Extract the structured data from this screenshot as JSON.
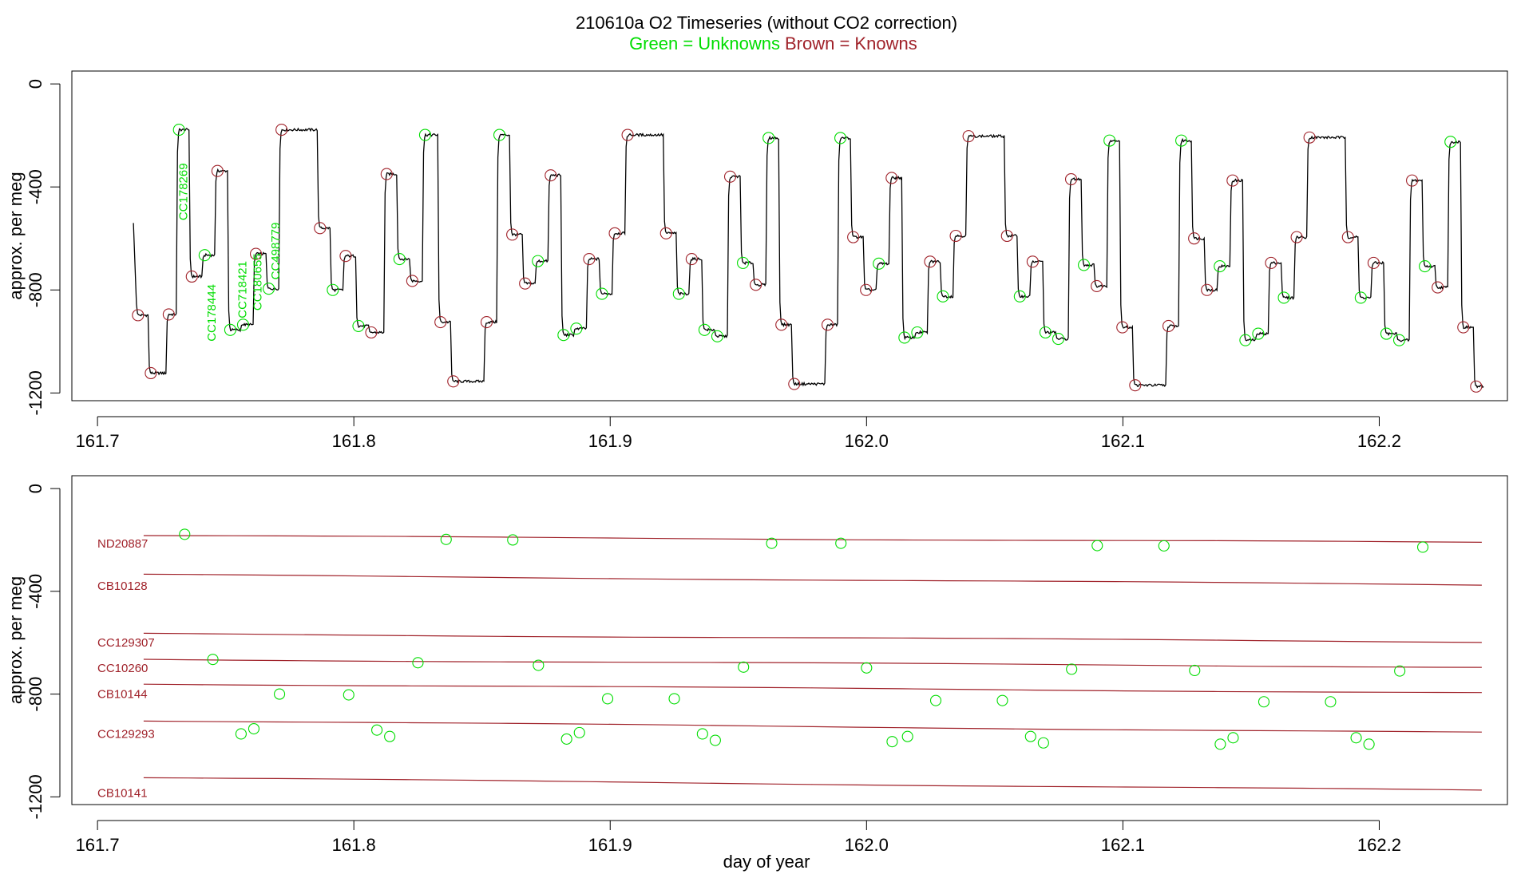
{
  "title": {
    "main": "210610a   O2 Timeseries (without CO2 correction)",
    "unknowns": "Green = Unknowns",
    "knowns": "Brown = Knowns"
  },
  "colors": {
    "unknown": "#00dd00",
    "known": "#a0222a",
    "trace": "#000000",
    "axis": "#000000"
  },
  "chart_data": [
    {
      "type": "line",
      "panel": "top",
      "title": "210610a   O2 Timeseries (without CO2 correction)",
      "xlabel": "",
      "ylabel": "approx. per meg",
      "xlim": [
        161.69,
        162.25
      ],
      "ylim": [
        -1230,
        50
      ],
      "x_ticks": [
        161.7,
        161.8,
        161.9,
        162.0,
        162.1,
        162.2
      ],
      "x_tick_labels": [
        "161.7",
        "161.8",
        "161.9",
        "162.0",
        "162.1",
        "162.2"
      ],
      "y_ticks": [
        0,
        -400,
        -800,
        -1200
      ],
      "y_tick_labels": [
        "0",
        "-400",
        "-800",
        "-1200"
      ],
      "grid": false,
      "trace_start": {
        "x": 161.714,
        "y": -540
      },
      "steps": [
        {
          "x": 161.715,
          "y": -898,
          "k": "k"
        },
        {
          "x": 161.72,
          "y": -1123,
          "k": "k"
        },
        {
          "x": 161.727,
          "y": -895,
          "k": "k"
        },
        {
          "x": 161.731,
          "y": -178,
          "k": "u"
        },
        {
          "x": 161.736,
          "y": -748,
          "k": "k"
        },
        {
          "x": 161.741,
          "y": -665,
          "k": "u"
        },
        {
          "x": 161.746,
          "y": -338,
          "k": "k"
        },
        {
          "x": 161.751,
          "y": -955,
          "k": "u"
        },
        {
          "x": 161.756,
          "y": -935,
          "k": "u"
        },
        {
          "x": 161.761,
          "y": -660,
          "k": "k"
        },
        {
          "x": 161.766,
          "y": -795,
          "k": "u"
        },
        {
          "x": 161.771,
          "y": -178,
          "k": "k"
        },
        {
          "x": 161.786,
          "y": -560,
          "k": "k"
        },
        {
          "x": 161.791,
          "y": -800,
          "k": "u"
        },
        {
          "x": 161.796,
          "y": -668,
          "k": "k"
        },
        {
          "x": 161.801,
          "y": -940,
          "k": "u"
        },
        {
          "x": 161.806,
          "y": -965,
          "k": "k"
        },
        {
          "x": 161.812,
          "y": -350,
          "k": "k"
        },
        {
          "x": 161.817,
          "y": -680,
          "k": "u"
        },
        {
          "x": 161.822,
          "y": -765,
          "k": "k"
        },
        {
          "x": 161.827,
          "y": -198,
          "k": "u"
        },
        {
          "x": 161.833,
          "y": -925,
          "k": "k"
        },
        {
          "x": 161.838,
          "y": -1155,
          "k": "k"
        },
        {
          "x": 161.851,
          "y": -925,
          "k": "k"
        },
        {
          "x": 161.856,
          "y": -198,
          "k": "u"
        },
        {
          "x": 161.861,
          "y": -585,
          "k": "k"
        },
        {
          "x": 161.866,
          "y": -775,
          "k": "k"
        },
        {
          "x": 161.871,
          "y": -688,
          "k": "u"
        },
        {
          "x": 161.876,
          "y": -355,
          "k": "k"
        },
        {
          "x": 161.881,
          "y": -975,
          "k": "u"
        },
        {
          "x": 161.886,
          "y": -950,
          "k": "u"
        },
        {
          "x": 161.891,
          "y": -680,
          "k": "k"
        },
        {
          "x": 161.896,
          "y": -815,
          "k": "u"
        },
        {
          "x": 161.901,
          "y": -580,
          "k": "k"
        },
        {
          "x": 161.906,
          "y": -198,
          "k": "k"
        },
        {
          "x": 161.921,
          "y": -580,
          "k": "k"
        },
        {
          "x": 161.926,
          "y": -815,
          "k": "u"
        },
        {
          "x": 161.931,
          "y": -680,
          "k": "k"
        },
        {
          "x": 161.936,
          "y": -955,
          "k": "u"
        },
        {
          "x": 161.941,
          "y": -980,
          "k": "u"
        },
        {
          "x": 161.946,
          "y": -360,
          "k": "k"
        },
        {
          "x": 161.951,
          "y": -695,
          "k": "u"
        },
        {
          "x": 161.956,
          "y": -780,
          "k": "k"
        },
        {
          "x": 161.961,
          "y": -210,
          "k": "u"
        },
        {
          "x": 161.966,
          "y": -935,
          "k": "k"
        },
        {
          "x": 161.971,
          "y": -1165,
          "k": "k"
        },
        {
          "x": 161.984,
          "y": -935,
          "k": "k"
        },
        {
          "x": 161.989,
          "y": -210,
          "k": "u"
        },
        {
          "x": 161.994,
          "y": -595,
          "k": "k"
        },
        {
          "x": 161.999,
          "y": -800,
          "k": "k"
        },
        {
          "x": 162.004,
          "y": -698,
          "k": "u"
        },
        {
          "x": 162.009,
          "y": -365,
          "k": "k"
        },
        {
          "x": 162.014,
          "y": -985,
          "k": "u"
        },
        {
          "x": 162.019,
          "y": -965,
          "k": "u"
        },
        {
          "x": 162.024,
          "y": -690,
          "k": "k"
        },
        {
          "x": 162.029,
          "y": -825,
          "k": "u"
        },
        {
          "x": 162.034,
          "y": -590,
          "k": "k"
        },
        {
          "x": 162.039,
          "y": -203,
          "k": "k"
        },
        {
          "x": 162.054,
          "y": -590,
          "k": "k"
        },
        {
          "x": 162.059,
          "y": -825,
          "k": "u"
        },
        {
          "x": 162.064,
          "y": -690,
          "k": "k"
        },
        {
          "x": 162.069,
          "y": -965,
          "k": "u"
        },
        {
          "x": 162.074,
          "y": -990,
          "k": "u"
        },
        {
          "x": 162.079,
          "y": -370,
          "k": "k"
        },
        {
          "x": 162.084,
          "y": -703,
          "k": "u"
        },
        {
          "x": 162.089,
          "y": -785,
          "k": "k"
        },
        {
          "x": 162.094,
          "y": -220,
          "k": "u"
        },
        {
          "x": 162.099,
          "y": -945,
          "k": "k"
        },
        {
          "x": 162.104,
          "y": -1170,
          "k": "k"
        },
        {
          "x": 162.117,
          "y": -940,
          "k": "k"
        },
        {
          "x": 162.122,
          "y": -220,
          "k": "u"
        },
        {
          "x": 162.127,
          "y": -600,
          "k": "k"
        },
        {
          "x": 162.132,
          "y": -800,
          "k": "k"
        },
        {
          "x": 162.137,
          "y": -708,
          "k": "u"
        },
        {
          "x": 162.142,
          "y": -375,
          "k": "k"
        },
        {
          "x": 162.147,
          "y": -995,
          "k": "u"
        },
        {
          "x": 162.152,
          "y": -970,
          "k": "u"
        },
        {
          "x": 162.157,
          "y": -695,
          "k": "k"
        },
        {
          "x": 162.162,
          "y": -830,
          "k": "u"
        },
        {
          "x": 162.167,
          "y": -595,
          "k": "k"
        },
        {
          "x": 162.172,
          "y": -208,
          "k": "k"
        },
        {
          "x": 162.187,
          "y": -595,
          "k": "k"
        },
        {
          "x": 162.192,
          "y": -830,
          "k": "u"
        },
        {
          "x": 162.197,
          "y": -695,
          "k": "k"
        },
        {
          "x": 162.202,
          "y": -970,
          "k": "u"
        },
        {
          "x": 162.207,
          "y": -995,
          "k": "u"
        },
        {
          "x": 162.212,
          "y": -375,
          "k": "k"
        },
        {
          "x": 162.217,
          "y": -708,
          "k": "u"
        },
        {
          "x": 162.222,
          "y": -790,
          "k": "k"
        },
        {
          "x": 162.227,
          "y": -225,
          "k": "u"
        },
        {
          "x": 162.232,
          "y": -945,
          "k": "k"
        },
        {
          "x": 162.237,
          "y": -1175,
          "k": "k"
        }
      ],
      "trace_end": 162.241,
      "annotations": [
        {
          "text": "CC178269",
          "x": 161.735,
          "y": -530
        },
        {
          "text": "CC178444",
          "x": 161.746,
          "y": -1000
        },
        {
          "text": "CC718421",
          "x": 161.758,
          "y": -910
        },
        {
          "text": "CC180655",
          "x": 161.764,
          "y": -880
        },
        {
          "text": "CC498779",
          "x": 161.771,
          "y": -760
        }
      ]
    },
    {
      "type": "scatter",
      "panel": "bottom",
      "xlabel": "day of year",
      "ylabel": "approx. per meg",
      "xlim": [
        161.69,
        162.25
      ],
      "ylim": [
        -1230,
        50
      ],
      "x_ticks": [
        161.7,
        161.8,
        161.9,
        162.0,
        162.1,
        162.2
      ],
      "x_tick_labels": [
        "161.7",
        "161.8",
        "161.9",
        "162.0",
        "162.1",
        "162.2"
      ],
      "y_ticks": [
        0,
        -400,
        -800,
        -1200
      ],
      "y_tick_labels": [
        "0",
        "-400",
        "-800",
        "-1200"
      ],
      "grid": false,
      "reference_lines": [
        {
          "name": "ND20887",
          "label_y": -230,
          "y0": -183,
          "y1": -210,
          "x0": 161.718,
          "x1": 162.24
        },
        {
          "name": "CB10128",
          "label_y": -395,
          "y0": -335,
          "y1": -375,
          "x0": 161.718,
          "x1": 162.24
        },
        {
          "name": "CC129307",
          "label_y": -615,
          "y0": -565,
          "y1": -597,
          "x0": 161.718,
          "x1": 162.24
        },
        {
          "name": "CC10260",
          "label_y": -715,
          "y0": -665,
          "y1": -695,
          "x0": 161.718,
          "x1": 162.24
        },
        {
          "name": "CB10144",
          "label_y": -815,
          "y0": -760,
          "y1": -795,
          "x0": 161.718,
          "x1": 162.24
        },
        {
          "name": "CC129293",
          "label_y": -970,
          "y0": -903,
          "y1": -950,
          "x0": 161.718,
          "x1": 162.24
        },
        {
          "name": "CB10141",
          "label_y": -1200,
          "y0": -1125,
          "y1": -1175,
          "x0": 161.718,
          "x1": 162.24
        }
      ],
      "points": [
        {
          "x": 161.734,
          "y": -178
        },
        {
          "x": 161.836,
          "y": -198
        },
        {
          "x": 161.862,
          "y": -200
        },
        {
          "x": 161.963,
          "y": -213
        },
        {
          "x": 161.99,
          "y": -213
        },
        {
          "x": 162.09,
          "y": -222
        },
        {
          "x": 162.116,
          "y": -223
        },
        {
          "x": 162.217,
          "y": -228
        },
        {
          "x": 161.745,
          "y": -665
        },
        {
          "x": 161.825,
          "y": -678
        },
        {
          "x": 161.872,
          "y": -688
        },
        {
          "x": 161.952,
          "y": -695
        },
        {
          "x": 162.0,
          "y": -698
        },
        {
          "x": 162.08,
          "y": -703
        },
        {
          "x": 162.128,
          "y": -708
        },
        {
          "x": 162.208,
          "y": -710
        },
        {
          "x": 161.771,
          "y": -800
        },
        {
          "x": 161.798,
          "y": -803
        },
        {
          "x": 161.899,
          "y": -818
        },
        {
          "x": 161.925,
          "y": -818
        },
        {
          "x": 162.027,
          "y": -825
        },
        {
          "x": 162.053,
          "y": -825
        },
        {
          "x": 162.155,
          "y": -830
        },
        {
          "x": 162.181,
          "y": -830
        },
        {
          "x": 161.756,
          "y": -955
        },
        {
          "x": 161.761,
          "y": -935
        },
        {
          "x": 161.809,
          "y": -940
        },
        {
          "x": 161.814,
          "y": -965
        },
        {
          "x": 161.883,
          "y": -975
        },
        {
          "x": 161.888,
          "y": -950
        },
        {
          "x": 161.936,
          "y": -955
        },
        {
          "x": 161.941,
          "y": -980
        },
        {
          "x": 162.01,
          "y": -985
        },
        {
          "x": 162.016,
          "y": -965
        },
        {
          "x": 162.064,
          "y": -965
        },
        {
          "x": 162.069,
          "y": -990
        },
        {
          "x": 162.138,
          "y": -995
        },
        {
          "x": 162.143,
          "y": -970
        },
        {
          "x": 162.191,
          "y": -970
        },
        {
          "x": 162.196,
          "y": -995
        }
      ]
    }
  ]
}
